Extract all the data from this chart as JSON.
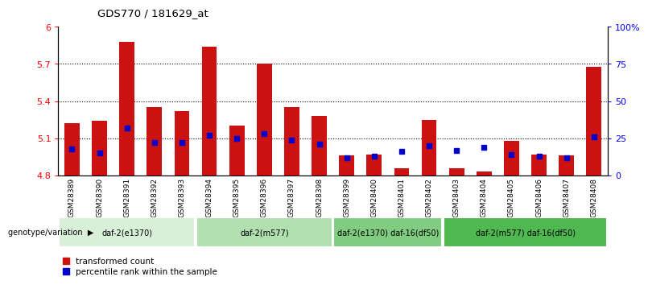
{
  "title": "GDS770 / 181629_at",
  "samples": [
    "GSM28389",
    "GSM28390",
    "GSM28391",
    "GSM28392",
    "GSM28393",
    "GSM28394",
    "GSM28395",
    "GSM28396",
    "GSM28397",
    "GSM28398",
    "GSM28399",
    "GSM28400",
    "GSM28401",
    "GSM28402",
    "GSM28403",
    "GSM28404",
    "GSM28405",
    "GSM28406",
    "GSM28407",
    "GSM28408"
  ],
  "transformed_count": [
    5.22,
    5.24,
    5.88,
    5.35,
    5.32,
    5.84,
    5.2,
    5.7,
    5.35,
    5.28,
    4.96,
    4.97,
    4.86,
    5.25,
    4.86,
    4.83,
    5.08,
    4.97,
    4.96,
    5.68
  ],
  "percentile_rank": [
    18,
    15,
    32,
    22,
    22,
    27,
    25,
    28,
    24,
    21,
    12,
    13,
    16,
    20,
    17,
    19,
    14,
    13,
    12,
    26
  ],
  "groups": [
    {
      "label": "daf-2(e1370)",
      "start": 0,
      "end": 4,
      "color": "#d8f0d8"
    },
    {
      "label": "daf-2(m577)",
      "start": 5,
      "end": 9,
      "color": "#b0e0b0"
    },
    {
      "label": "daf-2(e1370) daf-16(df50)",
      "start": 10,
      "end": 13,
      "color": "#80cc80"
    },
    {
      "label": "daf-2(m577) daf-16(df50)",
      "start": 14,
      "end": 19,
      "color": "#50b850"
    }
  ],
  "ylim_left": [
    4.8,
    6.0
  ],
  "ylim_right": [
    0,
    100
  ],
  "yticks_left": [
    4.8,
    5.1,
    5.4,
    5.7,
    6.0
  ],
  "ytick_labels_left": [
    "4.8",
    "5.1",
    "5.4",
    "5.7",
    "6"
  ],
  "yticks_right": [
    0,
    25,
    50,
    75,
    100
  ],
  "ytick_labels_right": [
    "0",
    "25",
    "50",
    "75",
    "100%"
  ],
  "bar_color": "#cc1111",
  "percentile_color": "#0000cc",
  "bar_width": 0.55,
  "genotype_label": "genotype/variation",
  "legend_items": [
    {
      "label": "transformed count",
      "color": "#cc1111"
    },
    {
      "label": "percentile rank within the sample",
      "color": "#0000cc"
    }
  ],
  "xtick_bg_color": "#c8c8c8",
  "grid_lines": [
    5.1,
    5.4,
    5.7
  ]
}
